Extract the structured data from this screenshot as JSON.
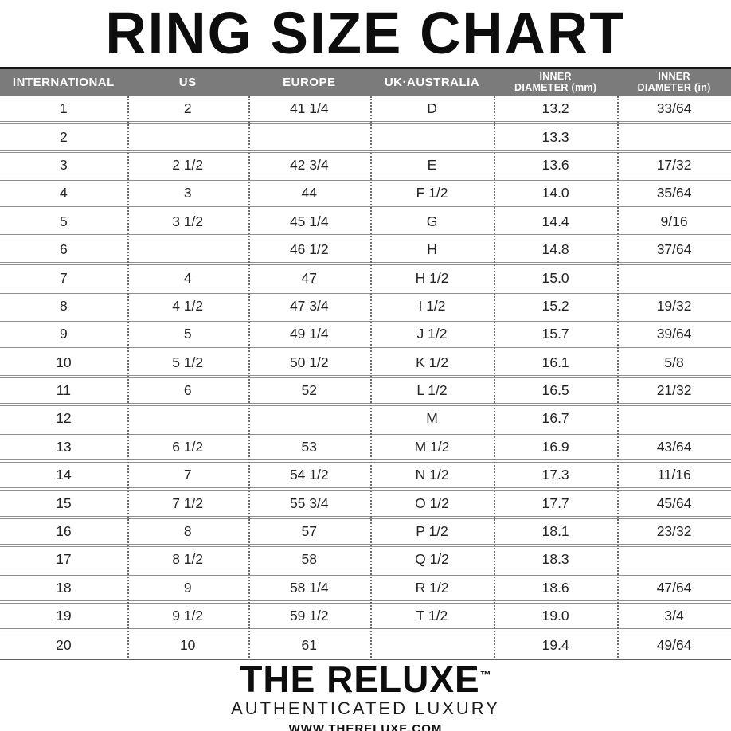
{
  "title": "RING SIZE CHART",
  "header": {
    "col1": "INTERNATIONAL",
    "col2": "US",
    "col3": "EUROPE",
    "col4": "UK·AUSTRALIA",
    "col5_line1": "INNER",
    "col5_line2": "DIAMETER (mm)",
    "col6_line1": "INNER",
    "col6_line2": "DIAMETER (in)"
  },
  "chart_data": {
    "type": "table",
    "title": "RING SIZE CHART",
    "columns": [
      "INTERNATIONAL",
      "US",
      "EUROPE",
      "UK·AUSTRALIA",
      "INNER DIAMETER (mm)",
      "INNER DIAMETER (in)"
    ],
    "rows": [
      [
        "1",
        "2",
        "41 1/4",
        "D",
        "13.2",
        "33/64"
      ],
      [
        "2",
        "",
        "",
        "",
        "13.3",
        ""
      ],
      [
        "3",
        "2 1/2",
        "42 3/4",
        "E",
        "13.6",
        "17/32"
      ],
      [
        "4",
        "3",
        "44",
        "F 1/2",
        "14.0",
        "35/64"
      ],
      [
        "5",
        "3 1/2",
        "45 1/4",
        "G",
        "14.4",
        "9/16"
      ],
      [
        "6",
        "",
        "46 1/2",
        "H",
        "14.8",
        "37/64"
      ],
      [
        "7",
        "4",
        "47",
        "H 1/2",
        "15.0",
        ""
      ],
      [
        "8",
        "4 1/2",
        "47 3/4",
        "I 1/2",
        "15.2",
        "19/32"
      ],
      [
        "9",
        "5",
        "49 1/4",
        "J 1/2",
        "15.7",
        "39/64"
      ],
      [
        "10",
        "5 1/2",
        "50 1/2",
        "K 1/2",
        "16.1",
        "5/8"
      ],
      [
        "11",
        "6",
        "52",
        "L 1/2",
        "16.5",
        "21/32"
      ],
      [
        "12",
        "",
        "",
        "M",
        "16.7",
        ""
      ],
      [
        "13",
        "6 1/2",
        "53",
        "M 1/2",
        "16.9",
        "43/64"
      ],
      [
        "14",
        "7",
        "54 1/2",
        "N 1/2",
        "17.3",
        "11/16"
      ],
      [
        "15",
        "7 1/2",
        "55 3/4",
        "O 1/2",
        "17.7",
        "45/64"
      ],
      [
        "16",
        "8",
        "57",
        "P 1/2",
        "18.1",
        "23/32"
      ],
      [
        "17",
        "8 1/2",
        "58",
        "Q 1/2",
        "18.3",
        ""
      ],
      [
        "18",
        "9",
        "58 1/4",
        "R 1/2",
        "18.6",
        "47/64"
      ],
      [
        "19",
        "9 1/2",
        "59 1/2",
        "T 1/2",
        "19.0",
        "3/4"
      ],
      [
        "20",
        "10",
        "61",
        "",
        "19.4",
        "49/64"
      ]
    ]
  },
  "footer": {
    "brand": "THE RELUXE",
    "trademark": "™",
    "tagline": "AUTHENTICATED LUXURY",
    "website": "WWW.THERELUXE.COM"
  },
  "colors": {
    "header_bg": "#7b7b7b",
    "header_text": "#ffffff",
    "top_rule": "#161616",
    "row_line": "#8e8e8e",
    "dot_line": "#6b6b6b",
    "text": "#242424"
  }
}
